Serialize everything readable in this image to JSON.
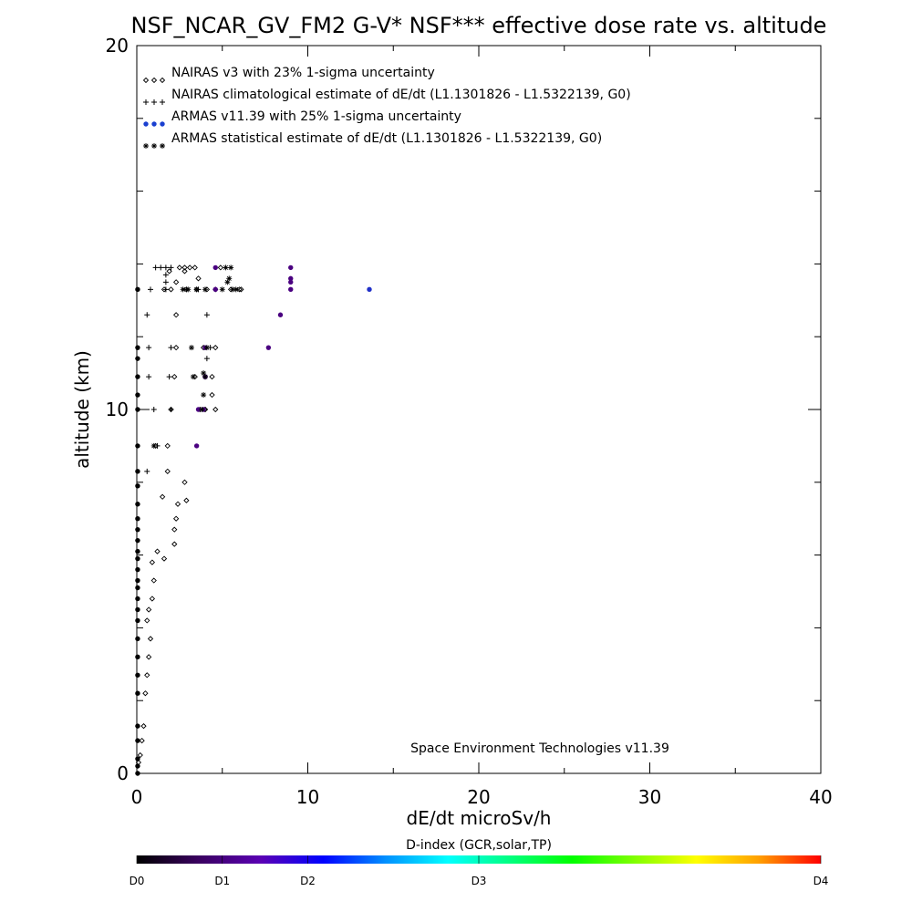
{
  "chart_data": {
    "type": "scatter",
    "title": "NSF_NCAR_GV_FM2 G-V* NSF*** effective dose rate vs. altitude",
    "xlabel": "dE/dt microSv/h",
    "ylabel": "altitude (km)",
    "xlim": [
      0,
      40
    ],
    "ylim": [
      0,
      20
    ],
    "xticks": [
      "0",
      "10",
      "20",
      "30",
      "40"
    ],
    "yticks": [
      "0",
      "10",
      "20"
    ],
    "grid": false,
    "legend_position": "top-left",
    "credit": "Space Environment Technologies v11.39",
    "colorbar": {
      "title": "D-index (GCR,solar,TP)",
      "ticks": [
        {
          "label": "D0",
          "value": 0
        },
        {
          "label": "D1",
          "value": 0.125
        },
        {
          "label": "D2",
          "value": 0.25
        },
        {
          "label": "D3",
          "value": 0.5
        },
        {
          "label": "D4",
          "value": 1
        }
      ],
      "colors": [
        "#000000",
        "#3a0060",
        "#5a00b4",
        "#0000ff",
        "#0090ff",
        "#00ffff",
        "#00ff80",
        "#00ff00",
        "#80ff00",
        "#ffff00",
        "#ffa000",
        "#ff0000"
      ]
    },
    "series": [
      {
        "name": "NAIRAS v3 with 23% 1-sigma uncertainty",
        "marker": "diamond",
        "color": "#000000",
        "points": [
          [
            0.1,
            0.3
          ],
          [
            0.2,
            0.5
          ],
          [
            0.3,
            0.9
          ],
          [
            0.4,
            1.3
          ],
          [
            0.5,
            2.2
          ],
          [
            0.6,
            2.7
          ],
          [
            0.7,
            3.2
          ],
          [
            0.8,
            3.7
          ],
          [
            0.6,
            4.2
          ],
          [
            0.7,
            4.5
          ],
          [
            0.9,
            4.8
          ],
          [
            1.0,
            5.3
          ],
          [
            0.9,
            5.8
          ],
          [
            1.2,
            6.1
          ],
          [
            1.6,
            5.9
          ],
          [
            2.2,
            6.3
          ],
          [
            2.2,
            6.7
          ],
          [
            2.3,
            7.0
          ],
          [
            2.4,
            7.4
          ],
          [
            2.9,
            7.5
          ],
          [
            1.5,
            7.6
          ],
          [
            2.8,
            8.0
          ],
          [
            1.8,
            8.3
          ],
          [
            1.8,
            9.0
          ],
          [
            1.1,
            9.0
          ],
          [
            2.0,
            10.0
          ],
          [
            4.0,
            10.0
          ],
          [
            4.6,
            10.0
          ],
          [
            4.4,
            10.4
          ],
          [
            4.4,
            10.9
          ],
          [
            3.4,
            10.9
          ],
          [
            2.2,
            10.9
          ],
          [
            4.6,
            11.7
          ],
          [
            3.9,
            11.7
          ],
          [
            2.3,
            11.7
          ],
          [
            2.3,
            12.6
          ],
          [
            1.6,
            13.3
          ],
          [
            1.9,
            13.8
          ],
          [
            2.0,
            13.3
          ],
          [
            2.3,
            13.5
          ],
          [
            2.8,
            13.8
          ],
          [
            2.9,
            13.3
          ],
          [
            3.5,
            13.3
          ],
          [
            4.1,
            13.3
          ],
          [
            4.6,
            13.3
          ],
          [
            5.5,
            13.3
          ],
          [
            6.0,
            13.3
          ],
          [
            2.5,
            13.9
          ],
          [
            2.8,
            13.9
          ],
          [
            3.1,
            13.9
          ],
          [
            3.4,
            13.9
          ],
          [
            3.6,
            13.6
          ],
          [
            4.9,
            13.9
          ],
          [
            6.1,
            13.3
          ]
        ]
      },
      {
        "name": "NAIRAS climatological estimate of dE/dt (L1.1301826 - L1.5322139, G0)",
        "marker": "plus",
        "color": "#000000",
        "points": [
          [
            0.6,
            8.3
          ],
          [
            1.2,
            9.0
          ],
          [
            1.0,
            10.0
          ],
          [
            2.0,
            10.0
          ],
          [
            0.7,
            10.9
          ],
          [
            1.9,
            10.9
          ],
          [
            0.7,
            11.7
          ],
          [
            2.0,
            11.7
          ],
          [
            0.6,
            12.6
          ],
          [
            0.8,
            13.3
          ],
          [
            1.7,
            13.3
          ],
          [
            1.7,
            13.5
          ],
          [
            1.7,
            13.7
          ],
          [
            1.1,
            13.9
          ],
          [
            1.4,
            13.9
          ],
          [
            1.7,
            13.9
          ],
          [
            2.0,
            13.9
          ],
          [
            2.9,
            13.3
          ],
          [
            3.6,
            13.3
          ],
          [
            4.1,
            12.6
          ],
          [
            4.1,
            11.4
          ],
          [
            4.3,
            11.7
          ],
          [
            4.0,
            10.9
          ],
          [
            3.7,
            10.0
          ],
          [
            4.0,
            10.0
          ]
        ]
      },
      {
        "name": "ARMAS v11.39 with 25% 1-sigma uncertainty",
        "marker": "dot",
        "color": "#1a3fd0",
        "points": [
          [
            0.05,
            0.0
          ],
          [
            0.05,
            0.2
          ],
          [
            0.05,
            0.4
          ],
          [
            0.05,
            0.9
          ],
          [
            0.05,
            1.3
          ],
          [
            0.05,
            2.2
          ],
          [
            0.05,
            2.7
          ],
          [
            0.05,
            3.2
          ],
          [
            0.05,
            3.7
          ],
          [
            0.05,
            4.2
          ],
          [
            0.05,
            4.5
          ],
          [
            0.05,
            4.8
          ],
          [
            0.05,
            5.1
          ],
          [
            0.05,
            5.3
          ],
          [
            0.05,
            5.6
          ],
          [
            0.05,
            5.9
          ],
          [
            0.05,
            6.1
          ],
          [
            0.05,
            6.4
          ],
          [
            0.05,
            6.7
          ],
          [
            0.05,
            7.0
          ],
          [
            0.05,
            7.4
          ],
          [
            0.05,
            7.9
          ],
          [
            0.05,
            8.3
          ],
          [
            0.05,
            9.0
          ],
          [
            0.05,
            10.0
          ],
          [
            0.05,
            10.4
          ],
          [
            0.05,
            10.9
          ],
          [
            0.05,
            11.4
          ],
          [
            0.05,
            11.7
          ],
          [
            0.05,
            13.3
          ],
          [
            3.5,
            9.0
          ],
          [
            3.6,
            10.0
          ],
          [
            3.9,
            10.0
          ],
          [
            4.0,
            10.9
          ],
          [
            4.0,
            11.7
          ],
          [
            4.6,
            13.3
          ],
          [
            4.6,
            13.9
          ],
          [
            7.7,
            11.7
          ],
          [
            8.4,
            12.6
          ],
          [
            9.0,
            13.9
          ],
          [
            9.0,
            13.6
          ],
          [
            9.0,
            13.5
          ],
          [
            9.0,
            13.3
          ],
          [
            13.6,
            13.3
          ]
        ]
      },
      {
        "name": "ARMAS statistical estimate of dE/dt (L1.1301826 - L1.5322139, G0)",
        "marker": "asterisk",
        "color": "#000000",
        "points": [
          [
            1.0,
            9.0
          ],
          [
            3.8,
            10.0
          ],
          [
            3.9,
            10.4
          ],
          [
            4.0,
            10.9
          ],
          [
            3.9,
            11.0
          ],
          [
            3.2,
            11.7
          ],
          [
            4.1,
            11.7
          ],
          [
            3.3,
            10.9
          ],
          [
            5.6,
            13.3
          ],
          [
            5.3,
            13.5
          ],
          [
            5.4,
            13.6
          ],
          [
            5.2,
            13.9
          ],
          [
            5.5,
            13.9
          ],
          [
            2.7,
            13.3
          ],
          [
            3.0,
            13.3
          ],
          [
            3.5,
            13.3
          ],
          [
            4.0,
            13.3
          ],
          [
            5.0,
            13.3
          ],
          [
            5.8,
            13.3
          ]
        ]
      }
    ]
  }
}
